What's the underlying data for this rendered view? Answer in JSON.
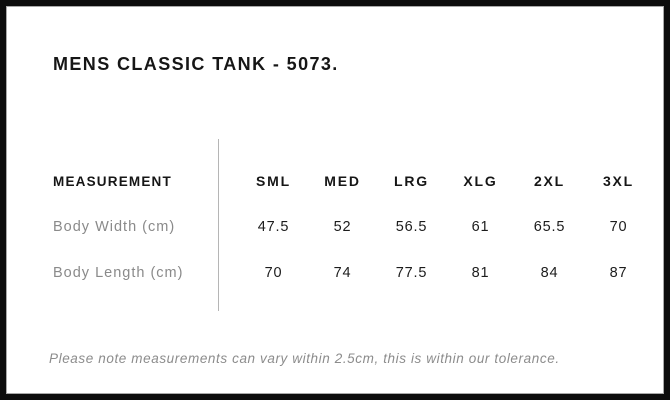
{
  "page": {
    "title": "MENS CLASSIC TANK - 5073.",
    "note": "Please note measurements can vary within 2.5cm, this is within our tolerance."
  },
  "size_chart": {
    "header_label": "MEASUREMENT",
    "sizes": [
      "SML",
      "MED",
      "LRG",
      "XLG",
      "2XL",
      "3XL"
    ],
    "rows": [
      {
        "label": "Body Width (cm)",
        "values": [
          "47.5",
          "52",
          "56.5",
          "61",
          "65.5",
          "70"
        ]
      },
      {
        "label": "Body Length (cm)",
        "values": [
          "70",
          "74",
          "77.5",
          "81",
          "84",
          "87"
        ]
      }
    ]
  },
  "colors": {
    "frame_border": "#0d0d0d",
    "heading_text": "#161616",
    "value_text": "#1c1c1c",
    "muted_text": "#8a8a8a",
    "divider_line": "#b5b5b5",
    "background": "#ffffff"
  }
}
